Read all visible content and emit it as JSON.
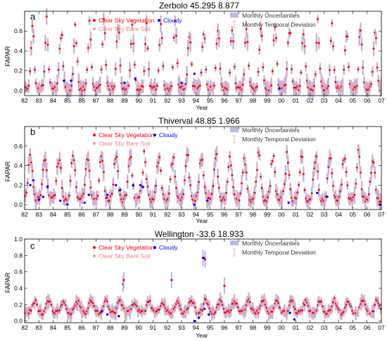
{
  "chart_data": [
    {
      "type": "scatter",
      "panel": "a",
      "title": "Zerbolo 45.295 8.877",
      "xlabel": "Year",
      "ylabel": "FAPAR",
      "ylim": [
        -0.05,
        0.8
      ],
      "yticks": [
        "0.0",
        "0.2",
        "0.4",
        "0.6"
      ],
      "xlim": [
        1982,
        2007
      ],
      "xticks": [
        "82",
        "83",
        "84",
        "85",
        "86",
        "87",
        "88",
        "89",
        "90",
        "91",
        "92",
        "93",
        "94",
        "95",
        "96",
        "97",
        "98",
        "99",
        "00",
        "01",
        "02",
        "03",
        "04",
        "05",
        "06",
        "07"
      ],
      "model": {
        "baseline": 0.02,
        "amplitude": 0.62,
        "peak_phase": 0.55,
        "width": 0.11
      },
      "cloudy_points": [
        {
          "x": 1984.75,
          "y": 0.1
        },
        {
          "x": 1985.25,
          "y": 0.1
        },
        {
          "x": 1989.0,
          "y": 0.08
        },
        {
          "x": 1989.75,
          "y": 0.12
        },
        {
          "x": 1993.0,
          "y": 0.08
        },
        {
          "x": 1993.9,
          "y": 0.17
        },
        {
          "x": 1999.85,
          "y": 0.02
        }
      ]
    },
    {
      "type": "scatter",
      "panel": "b",
      "title": "Thiverval 48.85 1.966",
      "xlabel": "Year",
      "ylabel": "FAPAR",
      "ylim": [
        -0.05,
        0.8
      ],
      "yticks": [
        "0.0",
        "0.2",
        "0.4",
        "0.6"
      ],
      "xlim": [
        1982,
        2007
      ],
      "xticks": [
        "82",
        "83",
        "84",
        "85",
        "86",
        "87",
        "88",
        "89",
        "90",
        "91",
        "92",
        "93",
        "94",
        "95",
        "96",
        "97",
        "98",
        "99",
        "00",
        "01",
        "02",
        "03",
        "04",
        "05",
        "06",
        "07"
      ],
      "model": {
        "baseline": 0.05,
        "amplitude": 0.45,
        "peak_phase": 0.4,
        "width": 0.14
      },
      "cloudy_points": [
        {
          "x": 1982.4,
          "y": 0.2
        },
        {
          "x": 1982.6,
          "y": 0.25
        },
        {
          "x": 1983.0,
          "y": 0.05
        },
        {
          "x": 1983.3,
          "y": 0.08
        },
        {
          "x": 1983.6,
          "y": 0.18
        },
        {
          "x": 1984.5,
          "y": 0.04
        },
        {
          "x": 1985.0,
          "y": 0.0
        },
        {
          "x": 1986.2,
          "y": 0.02
        },
        {
          "x": 1986.5,
          "y": 0.1
        },
        {
          "x": 1987.8,
          "y": 0.1
        },
        {
          "x": 1988.4,
          "y": 0.2
        },
        {
          "x": 1988.7,
          "y": 0.15
        },
        {
          "x": 1989.6,
          "y": 0.2
        },
        {
          "x": 1990.1,
          "y": 0.2
        },
        {
          "x": 1990.3,
          "y": 0.18
        },
        {
          "x": 1993.9,
          "y": 0.0
        },
        {
          "x": 1994.8,
          "y": 0.04
        },
        {
          "x": 2000.5,
          "y": 0.02
        },
        {
          "x": 2002.5,
          "y": 0.12
        },
        {
          "x": 2003.2,
          "y": 0.08
        },
        {
          "x": 2006.9,
          "y": 0.0
        }
      ]
    },
    {
      "type": "scatter",
      "panel": "c",
      "title": "Wellington -33.6 18.933",
      "xlabel": "Year",
      "ylabel": "FAPAR",
      "ylim": [
        -0.02,
        1.0
      ],
      "yticks": [
        "0.0",
        "0.2",
        "0.4",
        "0.6",
        "0.8",
        "1.0"
      ],
      "xlim": [
        1982,
        2007
      ],
      "xticks": [
        "82",
        "83",
        "84",
        "85",
        "86",
        "87",
        "88",
        "89",
        "90",
        "91",
        "92",
        "93",
        "94",
        "95",
        "96",
        "97",
        "98",
        "99",
        "00",
        "01",
        "02",
        "03",
        "04",
        "05",
        "06",
        "07"
      ],
      "model": {
        "baseline": 0.1,
        "amplitude": 0.15,
        "peak_phase": 0.7,
        "width": 0.16
      },
      "annotations": [
        {
          "x": 1988.9,
          "y": 0.45
        },
        {
          "x": 1988.95,
          "y": 0.5
        },
        {
          "x": 1992.3,
          "y": 0.5
        },
        {
          "x": 1994.5,
          "y": 0.77
        },
        {
          "x": 1994.65,
          "y": 0.75
        },
        {
          "x": 1996.0,
          "y": 0.43
        }
      ],
      "cloudy_points": [
        {
          "x": 1987.4,
          "y": 0.12
        },
        {
          "x": 1987.8,
          "y": 0.08
        },
        {
          "x": 1988.6,
          "y": 0.06
        },
        {
          "x": 1993.9,
          "y": 0.0
        },
        {
          "x": 1994.2,
          "y": 0.04
        },
        {
          "x": 1994.55,
          "y": 0.77
        },
        {
          "x": 1994.6,
          "y": 0.15
        },
        {
          "x": 1994.9,
          "y": 0.08
        },
        {
          "x": 2000.6,
          "y": 0.1
        },
        {
          "x": 2000.9,
          "y": 0.02
        }
      ]
    }
  ],
  "legend": {
    "clear_sky_vegetation": "Clear Sky Vegetation",
    "clear_sky_bare_soil": "Clear Sky Bare Soil",
    "cloudy": "Cloudy",
    "monthly_uncertainties": "Monthly Uncertainties",
    "monthly_temporal_deviation": "Monthly Temporal Deviation"
  },
  "colors": {
    "vegetation": "#ff0000",
    "bare_soil": "#ff9a9a",
    "cloudy": "#0000ff",
    "uncertainty": "#b9b9e6",
    "deviation": "#ff9999",
    "axes": "#000000"
  }
}
